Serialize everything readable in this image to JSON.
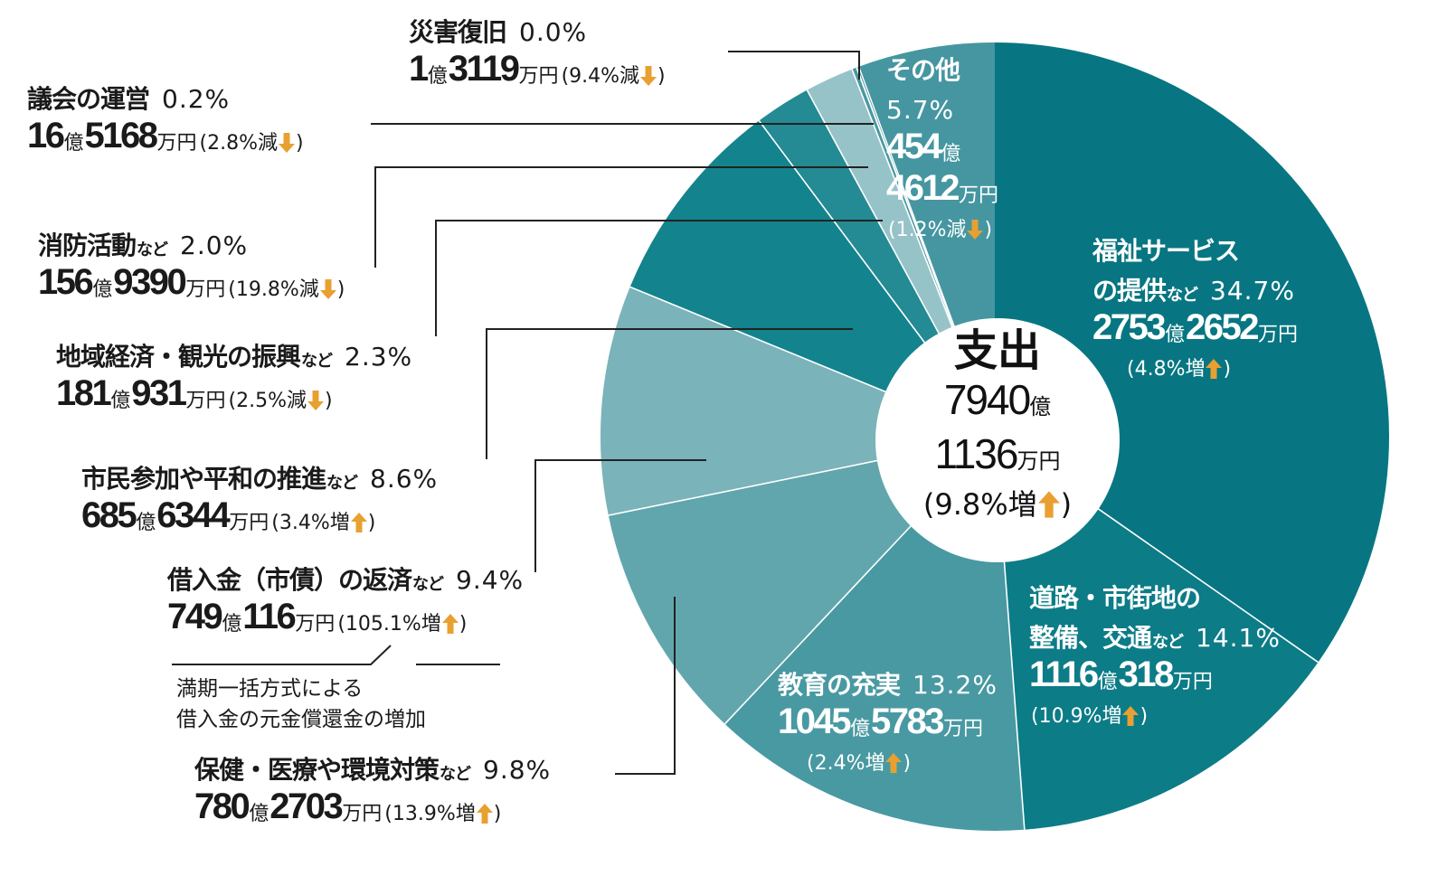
{
  "chart_data": {
    "type": "pie",
    "donut": true,
    "center": {
      "title": "支出",
      "oku": "7940",
      "man": "1136",
      "change": "9.8%増",
      "direction": "up"
    },
    "colors": {
      "arrow": "#e8a030",
      "separator": "#ffffff"
    },
    "slices": [
      {
        "name_lines": [
          "福祉サービス",
          "の提供"
        ],
        "suffix": "など",
        "value": 34.7,
        "pct_label": "34.7%",
        "oku": "2753",
        "man": "2652",
        "change": "4.8%増",
        "direction": "up",
        "color": "#077682"
      },
      {
        "name_lines": [
          "道路・市街地の",
          "整備、交通"
        ],
        "suffix": "など",
        "value": 14.1,
        "pct_label": "14.1%",
        "oku": "1116",
        "man": "318",
        "change": "10.9%増",
        "direction": "up",
        "color": "#0c7c87"
      },
      {
        "name_lines": [
          "教育の充実"
        ],
        "suffix": "",
        "value": 13.2,
        "pct_label": "13.2%",
        "oku": "1045",
        "man": "5783",
        "change": "2.4%増",
        "direction": "up",
        "color": "#4899a2"
      },
      {
        "name_lines": [
          "保健・医療や環境対策"
        ],
        "suffix": "など",
        "value": 9.8,
        "pct_label": "9.8%",
        "oku": "780",
        "man": "2703",
        "change": "13.9%増",
        "direction": "up",
        "color": "#62a6ad"
      },
      {
        "name_lines": [
          "借入金（市債）の返済"
        ],
        "suffix": "など",
        "value": 9.4,
        "pct_label": "9.4%",
        "oku": "749",
        "man": "116",
        "change": "105.1%増",
        "direction": "up",
        "color": "#7ab3b9"
      },
      {
        "name_lines": [
          "市民参加や平和の推進"
        ],
        "suffix": "など",
        "value": 8.6,
        "pct_label": "8.6%",
        "oku": "685",
        "man": "6344",
        "change": "3.4%増",
        "direction": "up",
        "color": "#13838d"
      },
      {
        "name_lines": [
          "地域経済・観光の振興"
        ],
        "suffix": "など",
        "value": 2.3,
        "pct_label": "2.3%",
        "oku": "181",
        "man": "931",
        "change": "2.5%減",
        "direction": "down",
        "color": "#248a93"
      },
      {
        "name_lines": [
          "消防活動"
        ],
        "suffix": "など",
        "value": 2.0,
        "pct_label": "2.0%",
        "oku": "156",
        "man": "9390",
        "change": "19.8%減",
        "direction": "down",
        "color": "#96c3c8"
      },
      {
        "name_lines": [
          "議会の運営"
        ],
        "suffix": "",
        "value": 0.2,
        "pct_label": "0.2%",
        "oku": "16",
        "man": "5168",
        "change": "2.8%減",
        "direction": "down",
        "color": "#4a98a1"
      },
      {
        "name_lines": [
          "災害復旧"
        ],
        "suffix": "",
        "value": 0.0,
        "pct_label": "0.0%",
        "oku": "1",
        "man": "3119",
        "change": "9.4%減",
        "direction": "down",
        "color": "#4a98a1"
      },
      {
        "name_lines": [
          "その他"
        ],
        "suffix": "",
        "value": 5.7,
        "pct_label": "5.7%",
        "oku": "454",
        "man": "4612",
        "change": "1.2%減",
        "direction": "down",
        "color": "#4596a0"
      }
    ],
    "units": {
      "oku": "億",
      "man": "万円"
    },
    "note": [
      "満期一括方式による",
      "借入金の元金償還金の増加"
    ]
  }
}
